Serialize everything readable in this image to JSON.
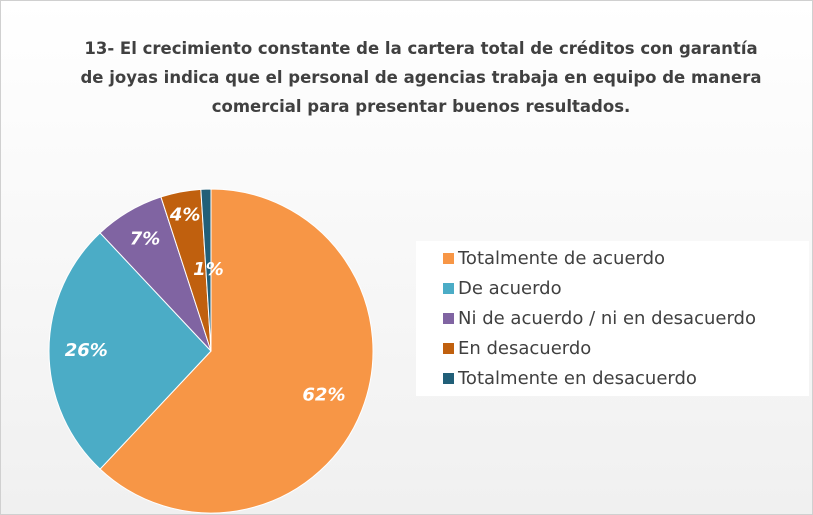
{
  "chart_data": {
    "type": "pie",
    "title": "13- El crecimiento constante de la cartera total de créditos con garantía de joyas indica que el personal de agencias trabaja en equipo de manera comercial para presentar buenos resultados.",
    "categories": [
      "Totalmente de acuerdo",
      "De acuerdo",
      "Ni de acuerdo / ni en desacuerdo",
      "En desacuerdo",
      "Totalmente en desacuerdo"
    ],
    "values": [
      62,
      26,
      7,
      4,
      1
    ],
    "value_labels": [
      "62%",
      "26%",
      "7%",
      "4%",
      "1%"
    ],
    "colors": [
      "#f79646",
      "#4bacc6",
      "#8064a2",
      "#c0600e",
      "#215f78"
    ],
    "legend": "right"
  }
}
